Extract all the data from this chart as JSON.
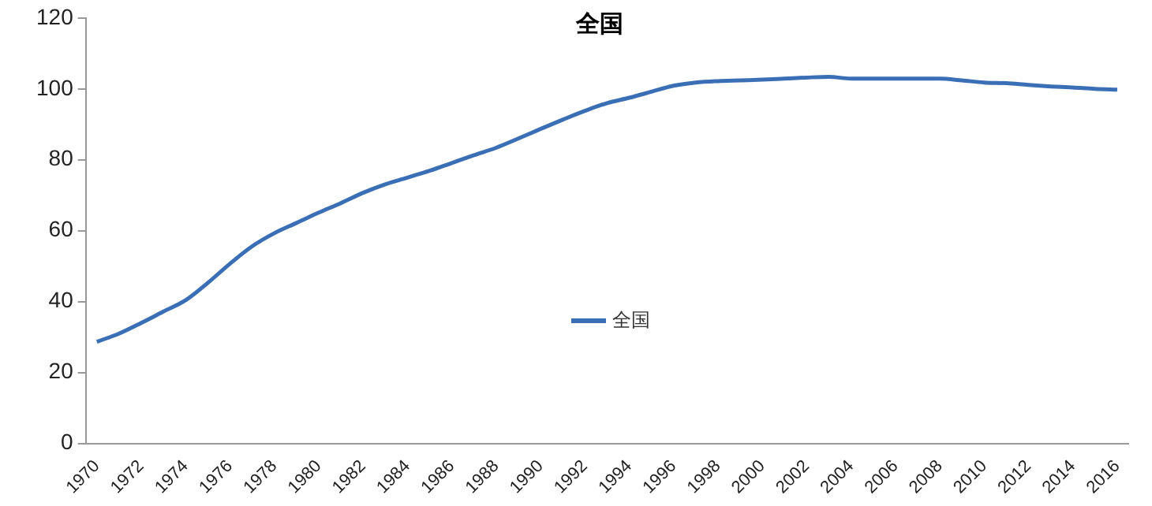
{
  "chart_data": {
    "type": "line",
    "title": "全国",
    "categories": [
      "1970",
      null,
      "1972",
      null,
      "1974",
      null,
      "1976",
      null,
      "1978",
      null,
      "1980",
      null,
      "1982",
      null,
      "1984",
      null,
      "1986",
      null,
      "1988",
      null,
      "1990",
      null,
      "1992",
      null,
      "1994",
      null,
      "1996",
      null,
      "1998",
      null,
      "2000",
      null,
      "2002",
      null,
      "2004",
      null,
      "2006",
      null,
      "2008",
      null,
      "2010",
      null,
      "2012",
      null,
      "2014",
      null,
      "2016"
    ],
    "series": [
      {
        "name": "全国",
        "color": "#3a6fb6",
        "values": [
          28.7,
          31,
          34,
          37.2,
          40.4,
          45.3,
          50.7,
          55.6,
          59.3,
          62.2,
          65.1,
          67.8,
          70.7,
          73.1,
          75,
          76.9,
          79.1,
          81.3,
          83.4,
          86,
          88.7,
          91.3,
          93.8,
          96,
          97.5,
          99.2,
          100.9,
          101.8,
          102.2,
          102.4,
          102.6,
          102.9,
          103.2,
          103.4,
          102.9,
          102.9,
          102.9,
          102.9,
          102.9,
          102.4,
          101.8,
          101.6,
          101.1,
          100.7,
          100.4,
          100,
          99.8
        ]
      }
    ],
    "ylim": [
      0,
      120
    ],
    "yticks": [
      0,
      20,
      40,
      60,
      80,
      100,
      120
    ],
    "grid": false,
    "legend": "center",
    "marker": "none",
    "line_style": "solid"
  }
}
